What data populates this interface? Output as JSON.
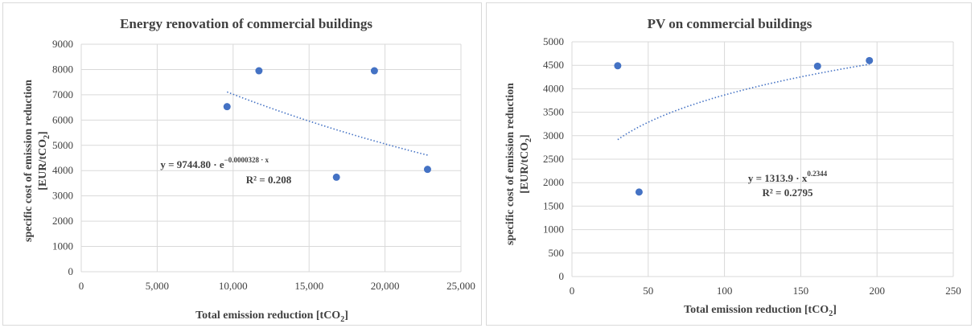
{
  "chart_data": [
    {
      "type": "scatter",
      "title": "Energy renovation of commercial buildings",
      "xlabel": "Total emission reduction [tCO",
      "xlabel_sub": "2",
      "xlabel_end": "]",
      "ylabel_line1": "specific cost of emission reduction",
      "ylabel_line2": "[EUR/tCO",
      "ylabel_sub": "2",
      "ylabel_end": "]",
      "xlim": [
        0,
        25000
      ],
      "ylim": [
        0,
        9000
      ],
      "xticks": [
        0,
        5000,
        10000,
        15000,
        20000,
        25000
      ],
      "xtick_labels": [
        "0",
        "5,000",
        "10,000",
        "15,000",
        "20,000",
        "25,000"
      ],
      "yticks": [
        0,
        1000,
        2000,
        3000,
        4000,
        5000,
        6000,
        7000,
        8000,
        9000
      ],
      "ytick_labels": [
        "0",
        "1000",
        "2000",
        "3000",
        "4000",
        "5000",
        "6000",
        "7000",
        "8000",
        "9000"
      ],
      "grid": true,
      "points": [
        {
          "x": 9600,
          "y": 6530
        },
        {
          "x": 11700,
          "y": 7950
        },
        {
          "x": 16800,
          "y": 3740
        },
        {
          "x": 19300,
          "y": 7950
        },
        {
          "x": 22800,
          "y": 4050
        }
      ],
      "trendline": {
        "kind": "exponential",
        "a": 9744.8,
        "b": -3.28e-05,
        "x_range": [
          9600,
          22800
        ]
      },
      "equation_main": "y = 9744.80 · e",
      "equation_exp": "−0.0000328 · x",
      "r2_label": "R² = 0.208",
      "marker_color": "#4472c4"
    },
    {
      "type": "scatter",
      "title": "PV on commercial buildings",
      "xlabel": "Total emission reduction [tCO",
      "xlabel_sub": "2",
      "xlabel_end": "]",
      "ylabel_line1": "specific cost of emission reduction",
      "ylabel_line2": "[EUR/tCO",
      "ylabel_sub": "2",
      "ylabel_end": "]",
      "xlim": [
        0,
        250
      ],
      "ylim": [
        0,
        5000
      ],
      "xticks": [
        0,
        50,
        100,
        150,
        200,
        250
      ],
      "xtick_labels": [
        "0",
        "50",
        "100",
        "150",
        "200",
        "250"
      ],
      "yticks": [
        0,
        500,
        1000,
        1500,
        2000,
        2500,
        3000,
        3500,
        4000,
        4500,
        5000
      ],
      "ytick_labels": [
        "0",
        "500",
        "1000",
        "1500",
        "2000",
        "2500",
        "3000",
        "3500",
        "4000",
        "4500",
        "5000"
      ],
      "grid": true,
      "points": [
        {
          "x": 30,
          "y": 4490
        },
        {
          "x": 44,
          "y": 1800
        },
        {
          "x": 161,
          "y": 4480
        },
        {
          "x": 195,
          "y": 4600
        }
      ],
      "trendline": {
        "kind": "power",
        "a": 1313.9,
        "b": 0.2344,
        "x_range": [
          30,
          195
        ]
      },
      "equation_main": "y = 1313.9 · x",
      "equation_exp": "0.2344",
      "r2_label": "R² = 0.2795",
      "marker_color": "#4472c4"
    }
  ]
}
